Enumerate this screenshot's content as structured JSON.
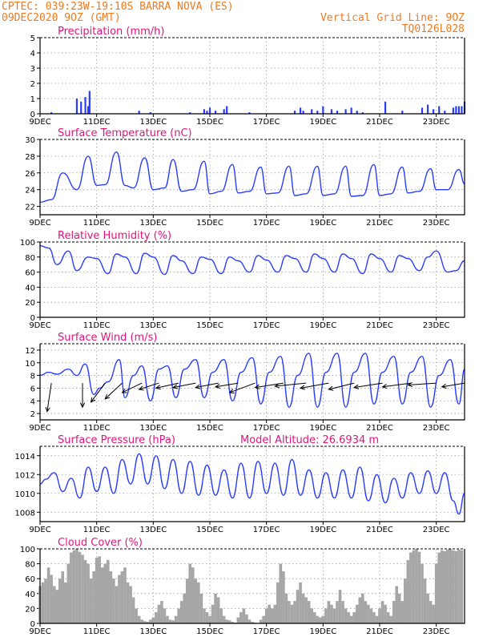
{
  "header": {
    "line1_left": "CPTEC:   039:23W-19:10S  BARRA NOVA (ES)",
    "line2_left": "09DEC2020 9OZ (GMT)",
    "line1_right": "Vertical Grid Line: 9OZ",
    "line2_right": "TQ0126L028"
  },
  "colors": {
    "header": "#ee7a1e",
    "title": "#e0147a",
    "line": "#2a3dff",
    "bars": "#2a3dff",
    "cloud": "#a6a6a6",
    "wind_arrow": "#000000"
  },
  "x_axis": {
    "labels": [
      "9DEC",
      "11DEC",
      "13DEC",
      "15DEC",
      "17DEC",
      "19DEC",
      "21DEC",
      "23DEC"
    ],
    "start_day": 9,
    "end_day": 24,
    "vertical_grid_days": [
      11,
      13,
      15,
      17,
      19,
      21,
      23
    ]
  },
  "chart_data": [
    {
      "type": "bar",
      "title": "Precipitation (mm/h)",
      "ylim": [
        0,
        5
      ],
      "yticks": [
        0,
        1,
        2,
        3,
        4,
        5
      ],
      "x": [
        9.4,
        10.3,
        10.45,
        10.6,
        10.7,
        10.75,
        12.5,
        12.9,
        14.3,
        14.8,
        14.9,
        15.0,
        15.2,
        15.5,
        15.6,
        16.4,
        18.0,
        18.2,
        18.3,
        18.6,
        18.8,
        19.0,
        19.3,
        19.5,
        19.8,
        20.0,
        20.2,
        20.4,
        21.2,
        21.8,
        22.5,
        22.7,
        22.9,
        23.1,
        23.3,
        23.6,
        23.7,
        23.8,
        23.9,
        24.0
      ],
      "values": [
        0.1,
        1.0,
        0.8,
        1.1,
        0.5,
        1.5,
        0.2,
        0.1,
        0.1,
        0.3,
        0.2,
        0.4,
        0.2,
        0.3,
        0.5,
        0.1,
        0.2,
        0.4,
        0.2,
        0.3,
        0.2,
        0.5,
        0.3,
        0.2,
        0.3,
        0.4,
        0.2,
        0.1,
        0.8,
        0.2,
        0.4,
        0.6,
        0.3,
        0.5,
        0.2,
        0.4,
        0.5,
        0.5,
        0.5,
        0.8
      ]
    },
    {
      "type": "line",
      "title": "Surface Temperature (nC)",
      "ylim": [
        21,
        30
      ],
      "yticks": [
        22,
        24,
        26,
        28,
        30
      ],
      "series": [
        {
          "x": [
            9.0,
            9.4,
            9.8,
            10.3,
            10.7,
            11.0,
            11.3,
            11.7,
            12.0,
            12.3,
            12.7,
            13.0,
            13.4,
            13.7,
            14.0,
            14.4,
            14.8,
            15.0,
            15.4,
            15.8,
            16.0,
            16.4,
            16.8,
            17.0,
            17.4,
            17.8,
            18.0,
            18.4,
            18.8,
            19.0,
            19.4,
            19.8,
            20.0,
            20.4,
            20.8,
            21.0,
            21.4,
            21.8,
            22.0,
            22.4,
            22.8,
            23.0,
            23.4,
            23.8,
            24.0
          ],
          "y": [
            22.5,
            22.8,
            26.0,
            24.0,
            28.0,
            24.5,
            24.6,
            28.5,
            24.5,
            24.2,
            27.8,
            24.0,
            24.2,
            27.6,
            23.8,
            24.0,
            27.4,
            23.5,
            23.8,
            27.0,
            23.6,
            23.8,
            26.7,
            23.5,
            23.6,
            26.8,
            23.3,
            23.5,
            26.8,
            23.3,
            23.5,
            26.8,
            23.2,
            23.3,
            27.0,
            23.3,
            23.5,
            26.7,
            23.6,
            23.8,
            26.5,
            24.0,
            24.0,
            26.4,
            24.7
          ]
        }
      ]
    },
    {
      "type": "line",
      "title": "Relative Humidity (%)",
      "ylim": [
        0,
        100
      ],
      "yticks": [
        0,
        20,
        40,
        60,
        80,
        100
      ],
      "series": [
        {
          "x": [
            9.0,
            9.3,
            9.6,
            10.0,
            10.3,
            10.7,
            11.0,
            11.4,
            11.7,
            12.0,
            12.4,
            12.7,
            13.0,
            13.4,
            13.7,
            14.0,
            14.4,
            14.7,
            15.0,
            15.4,
            15.7,
            16.0,
            16.4,
            16.7,
            17.0,
            17.4,
            17.7,
            18.0,
            18.4,
            18.7,
            19.0,
            19.4,
            19.7,
            20.0,
            20.4,
            20.7,
            21.0,
            21.4,
            21.7,
            22.0,
            22.4,
            22.7,
            23.0,
            23.4,
            23.7,
            24.0
          ],
          "y": [
            95,
            92,
            70,
            88,
            62,
            80,
            78,
            58,
            84,
            80,
            58,
            85,
            80,
            57,
            82,
            75,
            58,
            80,
            77,
            58,
            80,
            75,
            60,
            82,
            76,
            60,
            82,
            78,
            60,
            84,
            78,
            60,
            84,
            78,
            58,
            84,
            78,
            60,
            82,
            78,
            62,
            80,
            88,
            60,
            62,
            75
          ]
        }
      ]
    },
    {
      "type": "line",
      "title": "Surface Wind (m/s)",
      "ylim": [
        1,
        13
      ],
      "yticks": [
        2,
        4,
        6,
        8,
        10,
        12
      ],
      "series": [
        {
          "x": [
            9.0,
            9.3,
            9.6,
            10.0,
            10.3,
            10.6,
            10.9,
            11.1,
            11.4,
            11.8,
            12.0,
            12.3,
            12.6,
            12.9,
            13.2,
            13.5,
            13.8,
            14.1,
            14.5,
            14.8,
            15.1,
            15.5,
            15.8,
            16.1,
            16.5,
            16.8,
            17.1,
            17.5,
            17.8,
            18.1,
            18.5,
            18.8,
            19.1,
            19.5,
            19.8,
            20.1,
            20.5,
            20.8,
            21.1,
            21.5,
            21.8,
            22.1,
            22.5,
            22.8,
            23.1,
            23.5,
            23.8,
            24.0
          ],
          "y": [
            8.0,
            8.5,
            8.2,
            9.0,
            8.0,
            9.8,
            5.0,
            6.0,
            7.0,
            10.5,
            4.5,
            8.0,
            9.5,
            4.0,
            9.0,
            9.5,
            4.5,
            9.0,
            10.5,
            4.5,
            8.5,
            10.5,
            4.0,
            8.5,
            10.8,
            3.5,
            8.5,
            11.0,
            3.0,
            8.0,
            11.5,
            3.0,
            8.5,
            11.5,
            3.0,
            8.5,
            11.5,
            3.5,
            8.5,
            11.0,
            3.5,
            8.5,
            11.0,
            3.0,
            8.0,
            10.5,
            3.5,
            9.0
          ]
        }
      ],
      "arrows": [
        {
          "x": 9.4,
          "dx": -0.15,
          "dy": -4.5
        },
        {
          "x": 10.5,
          "dx": 0.0,
          "dy": -3.8
        },
        {
          "x": 11.3,
          "dx": -0.5,
          "dy": -3.0
        },
        {
          "x": 11.9,
          "dx": -0.6,
          "dy": -2.5
        },
        {
          "x": 12.6,
          "dx": -0.7,
          "dy": -1.5
        },
        {
          "x": 13.2,
          "dx": -0.7,
          "dy": -1.0
        },
        {
          "x": 13.9,
          "dx": -0.8,
          "dy": -0.8
        },
        {
          "x": 14.5,
          "dx": -0.8,
          "dy": -0.7
        },
        {
          "x": 15.3,
          "dx": -0.8,
          "dy": -0.7
        },
        {
          "x": 16.0,
          "dx": -0.8,
          "dy": -0.6
        },
        {
          "x": 16.6,
          "dx": -0.9,
          "dy": -1.5
        },
        {
          "x": 17.6,
          "dx": -1.0,
          "dy": -0.7
        },
        {
          "x": 18.4,
          "dx": -1.1,
          "dy": -0.5
        },
        {
          "x": 19.2,
          "dx": -1.0,
          "dy": -0.8
        },
        {
          "x": 20.1,
          "dx": -0.9,
          "dy": -1.0
        },
        {
          "x": 21.1,
          "dx": -1.0,
          "dy": -0.7
        },
        {
          "x": 22.1,
          "dx": -1.0,
          "dy": -0.6
        },
        {
          "x": 23.0,
          "dx": -1.0,
          "dy": -0.3
        },
        {
          "x": 24.0,
          "dx": -0.8,
          "dy": -0.6
        }
      ]
    },
    {
      "type": "line",
      "title": "Surface Pressure (hPa)",
      "annotation": "Model Altitude: 26.6934 m",
      "ylim": [
        1007,
        1015
      ],
      "yticks": [
        1008,
        1010,
        1012,
        1014
      ],
      "series": [
        {
          "x": [
            9.0,
            9.2,
            9.5,
            9.8,
            10.1,
            10.4,
            10.7,
            11.0,
            11.3,
            11.6,
            11.9,
            12.2,
            12.5,
            12.8,
            13.1,
            13.4,
            13.7,
            14.0,
            14.3,
            14.6,
            14.9,
            15.2,
            15.5,
            15.8,
            16.1,
            16.4,
            16.7,
            17.0,
            17.3,
            17.6,
            17.9,
            18.2,
            18.5,
            18.8,
            19.1,
            19.4,
            19.7,
            20.0,
            20.3,
            20.6,
            20.9,
            21.2,
            21.5,
            21.8,
            22.1,
            22.4,
            22.7,
            23.0,
            23.3,
            23.6,
            23.8,
            24.0
          ],
          "y": [
            1011.0,
            1011.5,
            1012.2,
            1010.2,
            1011.6,
            1009.5,
            1012.8,
            1010.2,
            1012.8,
            1010.0,
            1013.6,
            1011.0,
            1014.2,
            1011.0,
            1014.0,
            1010.5,
            1013.6,
            1010.0,
            1013.4,
            1009.8,
            1013.0,
            1009.8,
            1012.5,
            1009.5,
            1013.2,
            1009.5,
            1013.4,
            1010.0,
            1013.2,
            1009.8,
            1013.6,
            1009.8,
            1012.5,
            1009.5,
            1012.2,
            1009.5,
            1012.5,
            1009.5,
            1012.8,
            1009.2,
            1012.0,
            1009.0,
            1011.6,
            1009.5,
            1012.2,
            1010.0,
            1012.4,
            1010.0,
            1012.2,
            1009.2,
            1007.8,
            1010.0
          ]
        }
      ]
    },
    {
      "type": "bar",
      "title": "Cloud Cover (%)",
      "ylim": [
        0,
        100
      ],
      "yticks": [
        0,
        20,
        40,
        60,
        80,
        100
      ],
      "x": [
        9.0,
        9.1,
        9.2,
        9.3,
        9.4,
        9.5,
        9.6,
        9.7,
        9.8,
        9.9,
        10.0,
        10.1,
        10.2,
        10.3,
        10.4,
        10.5,
        10.6,
        10.7,
        10.8,
        10.9,
        11.0,
        11.1,
        11.2,
        11.3,
        11.4,
        11.5,
        11.6,
        11.7,
        11.8,
        11.9,
        12.0,
        12.1,
        12.2,
        12.3,
        12.4,
        12.5,
        12.6,
        12.7,
        12.8,
        12.9,
        13.0,
        13.1,
        13.2,
        13.3,
        13.4,
        13.5,
        13.6,
        13.7,
        13.8,
        13.9,
        14.0,
        14.1,
        14.2,
        14.3,
        14.4,
        14.5,
        14.6,
        14.7,
        14.8,
        14.9,
        15.0,
        15.1,
        15.2,
        15.3,
        15.4,
        15.5,
        15.6,
        15.7,
        15.8,
        15.9,
        16.0,
        16.1,
        16.2,
        16.3,
        16.4,
        16.5,
        16.6,
        16.7,
        16.8,
        16.9,
        17.0,
        17.1,
        17.2,
        17.3,
        17.4,
        17.5,
        17.6,
        17.7,
        17.8,
        17.9,
        18.0,
        18.1,
        18.2,
        18.3,
        18.4,
        18.5,
        18.6,
        18.7,
        18.8,
        18.9,
        19.0,
        19.1,
        19.2,
        19.3,
        19.4,
        19.5,
        19.6,
        19.7,
        19.8,
        19.9,
        20.0,
        20.1,
        20.2,
        20.3,
        20.4,
        20.5,
        20.6,
        20.7,
        20.8,
        20.9,
        21.0,
        21.1,
        21.2,
        21.3,
        21.4,
        21.5,
        21.6,
        21.7,
        21.8,
        21.9,
        22.0,
        22.1,
        22.2,
        22.3,
        22.4,
        22.5,
        22.6,
        22.7,
        22.8,
        22.9,
        23.0,
        23.1,
        23.2,
        23.3,
        23.4,
        23.5,
        23.6,
        23.7,
        23.8,
        23.9
      ],
      "values": [
        50,
        55,
        60,
        75,
        65,
        50,
        45,
        60,
        70,
        55,
        80,
        95,
        98,
        100,
        96,
        92,
        85,
        80,
        60,
        70,
        88,
        90,
        75,
        80,
        85,
        70,
        60,
        50,
        65,
        70,
        75,
        55,
        50,
        35,
        20,
        10,
        5,
        3,
        2,
        5,
        8,
        15,
        25,
        30,
        20,
        10,
        5,
        4,
        10,
        20,
        30,
        40,
        60,
        80,
        75,
        60,
        55,
        40,
        20,
        15,
        10,
        25,
        40,
        35,
        20,
        10,
        5,
        4,
        2,
        1,
        8,
        15,
        20,
        12,
        5,
        2,
        1,
        0,
        5,
        10,
        20,
        25,
        20,
        25,
        55,
        80,
        70,
        40,
        30,
        25,
        30,
        45,
        55,
        40,
        35,
        30,
        20,
        15,
        10,
        8,
        10,
        20,
        30,
        25,
        20,
        30,
        45,
        30,
        20,
        15,
        10,
        15,
        25,
        35,
        40,
        30,
        25,
        20,
        15,
        10,
        20,
        30,
        25,
        15,
        10,
        30,
        50,
        40,
        30,
        60,
        85,
        95,
        98,
        100,
        96,
        80,
        60,
        40,
        30,
        25,
        80,
        95,
        98,
        97,
        99,
        100,
        98,
        97,
        99,
        98
      ]
    }
  ]
}
